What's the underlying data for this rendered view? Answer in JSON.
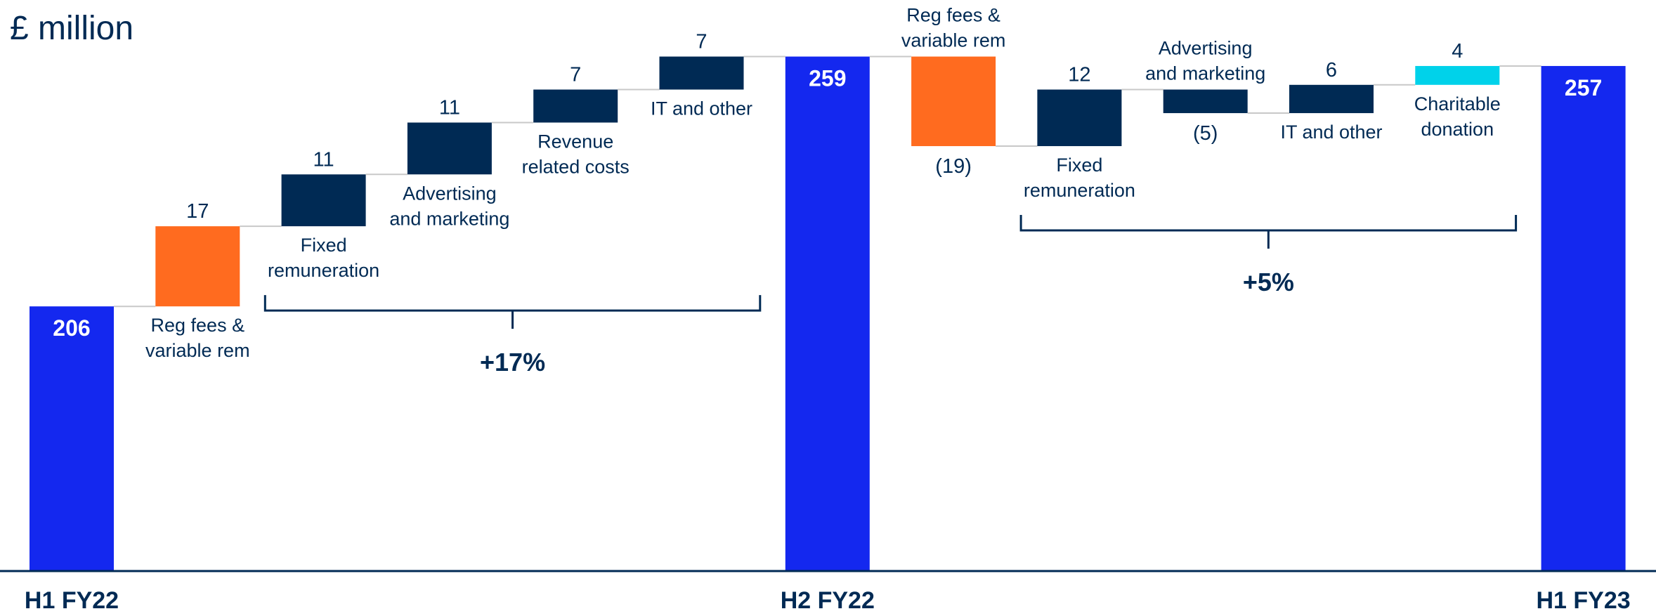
{
  "chart_data": {
    "type": "waterfall",
    "title": "£ million",
    "categories": [
      "H1 FY22",
      "Reg fees &\nvariable rem",
      "Fixed\nremuneration",
      "Advertising\nand marketing",
      "Revenue\nrelated costs",
      "IT and other",
      "H2 FY22",
      "Reg fees &\nvariable rem",
      "Fixed\nremuneration",
      "Advertising\nand marketing",
      "IT and other",
      "Charitable\ndonation",
      "H1 FY23"
    ],
    "values": [
      206,
      17,
      11,
      11,
      7,
      7,
      259,
      -19,
      12,
      -5,
      6,
      4,
      257
    ],
    "value_labels": [
      null,
      null,
      null,
      null,
      null,
      null,
      null,
      "(19)",
      null,
      "(5)",
      null,
      null,
      null
    ],
    "kinds": [
      "total",
      "step",
      "step",
      "step",
      "step",
      "step",
      "total",
      "step",
      "step",
      "step",
      "step",
      "step",
      "total"
    ],
    "colors": [
      "#1428ef",
      "#ff6b1f",
      "#002a54",
      "#002a54",
      "#002a54",
      "#002a54",
      "#1428ef",
      "#ff6b1f",
      "#002a54",
      "#002a54",
      "#002a54",
      "#00d2ea",
      "#1428ef"
    ],
    "ylim": [
      150,
      271
    ],
    "annotations": [
      {
        "text": "+17%",
        "from": 2,
        "to": 5
      },
      {
        "text": "+5%",
        "from": 8,
        "to": 11
      }
    ]
  }
}
